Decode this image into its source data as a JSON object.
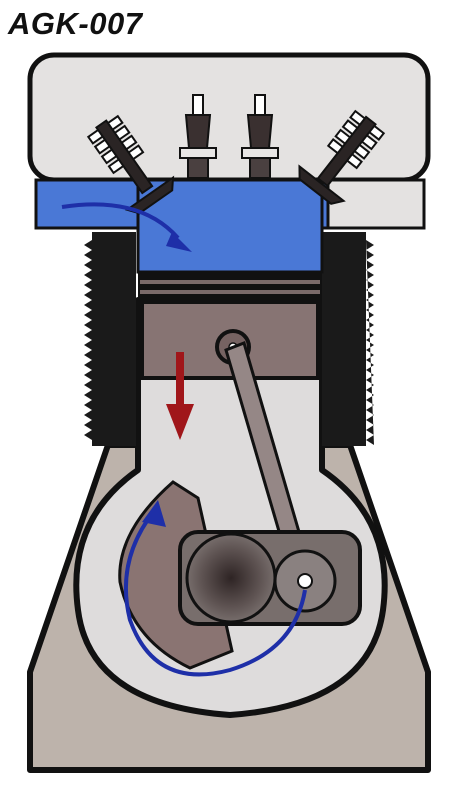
{
  "title": "AGK-007",
  "colors": {
    "outline": "#111111",
    "head": "#e4e2e1",
    "charge": "#4a78d6",
    "fins": "#1a1a1a",
    "bore": "#dedcdc",
    "piston": "#877473",
    "crank": "#786e6c",
    "counterweight": "#8a7472",
    "block": "#bdb3ab",
    "down_arrow": "#a0161a",
    "flow_arrow": "#1e2fa8"
  },
  "icons": [
    "intake-valve-icon",
    "exhaust-valve-icon",
    "spark-plug-icon",
    "piston-down-arrow-icon",
    "crank-rotation-arrow-icon",
    "intake-flow-arrow-icon"
  ]
}
